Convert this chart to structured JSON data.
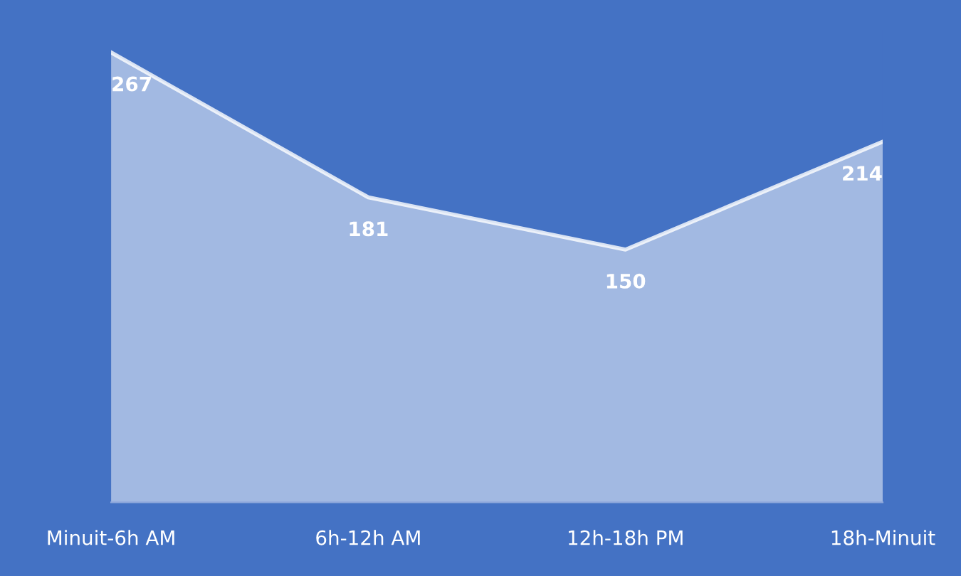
{
  "chart_data": {
    "type": "area",
    "categories": [
      "Minuit-6h AM",
      "6h-12h AM",
      "12h-18h PM",
      "18h-Minuit"
    ],
    "series": [
      {
        "color": "#ffffff",
        "values": [
          267,
          181,
          150,
          214
        ]
      }
    ],
    "data_labels": true,
    "grid": false,
    "legend": false
  }
}
